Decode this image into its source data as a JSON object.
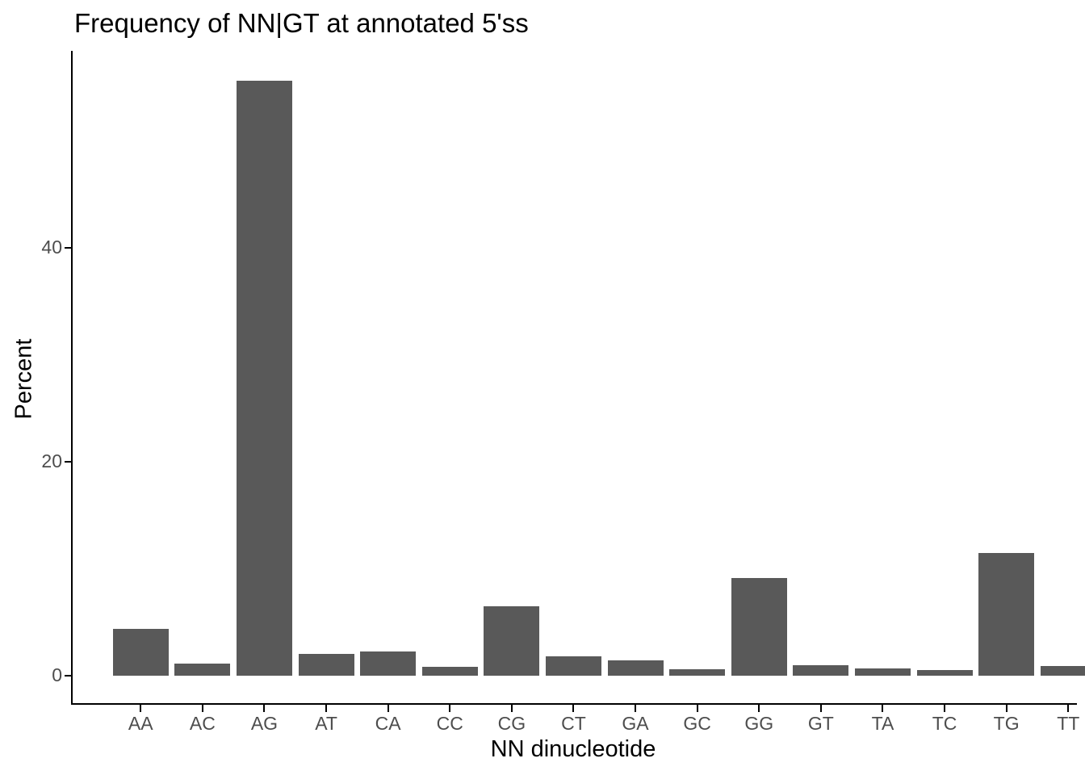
{
  "chart_data": {
    "type": "bar",
    "title": "Frequency of NN|GT at annotated 5'ss",
    "xlabel": "NN dinucleotide",
    "ylabel": "Percent",
    "categories": [
      "AA",
      "AC",
      "AG",
      "AT",
      "CA",
      "CC",
      "CG",
      "CT",
      "GA",
      "GC",
      "GG",
      "GT",
      "TA",
      "TC",
      "TG",
      "TT"
    ],
    "values": [
      4.4,
      1.1,
      55.6,
      2.0,
      2.3,
      0.8,
      6.5,
      1.8,
      1.4,
      0.6,
      9.1,
      1.0,
      0.7,
      0.5,
      11.5,
      0.9
    ],
    "yticks": [
      0,
      20,
      40
    ],
    "ylim": [
      0,
      58
    ],
    "grid": false,
    "legend_position": "none",
    "bar_color": "#595959",
    "axis_color": "#000000",
    "tick_label_color": "#4d4d4d"
  }
}
